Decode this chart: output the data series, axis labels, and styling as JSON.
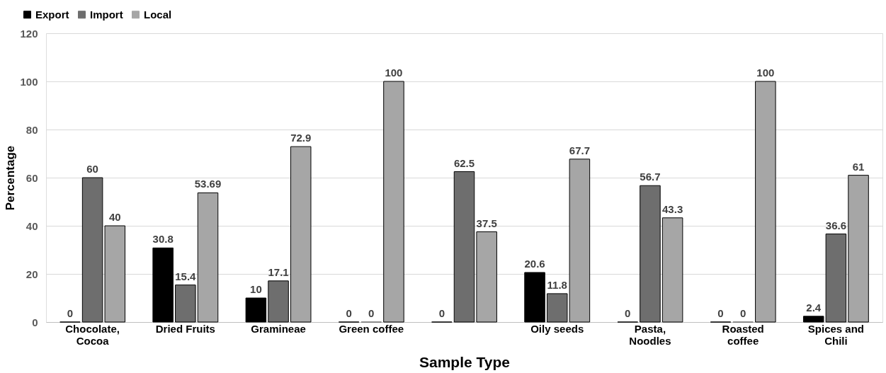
{
  "chart_data": {
    "type": "bar",
    "xlabel": "Sample Type",
    "ylabel": "Percentage",
    "categories": [
      "Chocolate, Cocoa",
      "Dried Fruits",
      "Gramineae",
      "Green coffee",
      null,
      "Oily seeds",
      "Pasta, Noodles",
      "Roasted coffee",
      "Spices and Chili"
    ],
    "series": [
      {
        "name": "Export",
        "color": "#000000",
        "values": [
          0,
          30.8,
          10,
          0,
          0,
          20.6,
          0,
          0,
          2.4
        ]
      },
      {
        "name": "Import",
        "color": "#6e6e6e",
        "values": [
          60,
          15.4,
          17.1,
          0,
          62.5,
          11.8,
          56.7,
          0,
          36.6
        ]
      },
      {
        "name": "Local",
        "color": "#a6a6a6",
        "values": [
          40,
          53.69,
          72.9,
          100,
          37.5,
          67.7,
          43.3,
          100,
          61
        ]
      }
    ],
    "ylim": [
      0,
      120
    ],
    "yticks": [
      0,
      20,
      40,
      60,
      80,
      100,
      120
    ],
    "grid": "y",
    "legend": "top left",
    "data_labels": true
  }
}
